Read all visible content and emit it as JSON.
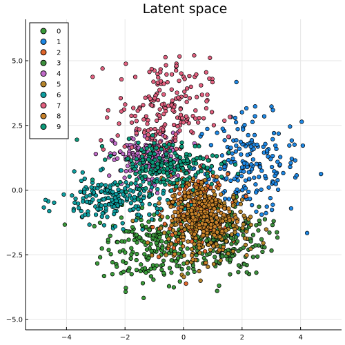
{
  "chart_data": {
    "type": "scatter",
    "title": "Latent space",
    "xlabel": "",
    "ylabel": "",
    "xlim": [
      -5.4,
      5.4
    ],
    "ylim": [
      -5.4,
      6.6
    ],
    "xticks": [
      -4,
      -2,
      0,
      2,
      4
    ],
    "xtick_labels": [
      "−4",
      "−2",
      "0",
      "2",
      "4"
    ],
    "yticks": [
      -5,
      -2.5,
      0,
      2.5,
      5
    ],
    "ytick_labels": [
      "−5.0",
      "−2.5",
      "0.0",
      "2.5",
      "5.0"
    ],
    "grid": true,
    "legend_position": "top-left",
    "points_per_series": 200,
    "series": [
      {
        "name": "0",
        "color": "#3a9a3a",
        "center": [
          -1.1,
          -2.2
        ],
        "spread": [
          0.85,
          0.75
        ]
      },
      {
        "name": "1",
        "color": "#1e88e5",
        "center": [
          2.2,
          0.9
        ],
        "spread": [
          0.9,
          1.0
        ]
      },
      {
        "name": "2",
        "color": "#e0662b",
        "center": [
          0.4,
          -0.8
        ],
        "spread": [
          0.55,
          0.7
        ]
      },
      {
        "name": "3",
        "color": "#3d8f3d",
        "center": [
          1.3,
          -1.9
        ],
        "spread": [
          0.8,
          0.7
        ]
      },
      {
        "name": "4",
        "color": "#c06bc8",
        "center": [
          -1.2,
          1.2
        ],
        "spread": [
          0.6,
          0.5
        ]
      },
      {
        "name": "5",
        "color": "#b5842a",
        "center": [
          0.9,
          -1.3
        ],
        "spread": [
          0.7,
          0.7
        ]
      },
      {
        "name": "6",
        "color": "#0e9ea0",
        "center": [
          -2.4,
          -0.4
        ],
        "spread": [
          0.9,
          0.45
        ]
      },
      {
        "name": "7",
        "color": "#e2607f",
        "center": [
          -0.7,
          3.1
        ],
        "spread": [
          0.8,
          1.0
        ]
      },
      {
        "name": "8",
        "color": "#c8822a",
        "center": [
          0.6,
          -0.9
        ],
        "spread": [
          0.55,
          0.75
        ]
      },
      {
        "name": "9",
        "color": "#0c9a7a",
        "center": [
          -0.6,
          1.0
        ],
        "spread": [
          0.9,
          0.45
        ]
      }
    ]
  }
}
